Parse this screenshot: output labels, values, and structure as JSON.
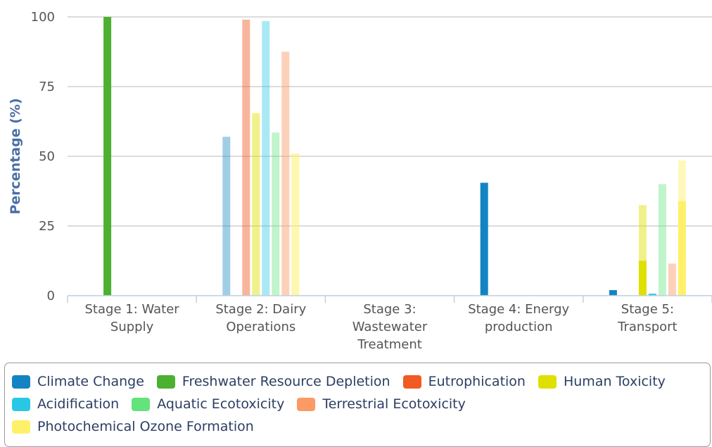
{
  "chart_data": {
    "type": "bar",
    "ylabel": "Percentage (%)",
    "ylim": [
      0,
      100
    ],
    "yticks": [
      0,
      25,
      50,
      75,
      100
    ],
    "grid": true,
    "legend_position": "bottom",
    "categories": [
      [
        "Stage 1: Water",
        "Supply"
      ],
      [
        "Stage 2: Dairy",
        "Operations"
      ],
      [
        "Stage 3:",
        "Wastewater",
        "Treatment"
      ],
      [
        "Stage 4: Energy",
        "production"
      ],
      [
        "Stage 5:",
        "Transport"
      ]
    ],
    "series": [
      {
        "name": "Climate Change",
        "color": "#1384c3",
        "stacks": [
          [
            0
          ],
          [
            {
              "value": 57,
              "alpha": 0.4
            }
          ],
          [
            0
          ],
          [
            40.5
          ],
          [
            2
          ]
        ]
      },
      {
        "name": "Freshwater Resource Depletion",
        "color": "#4cb031",
        "stacks": [
          [
            100
          ],
          [
            0
          ],
          [
            0
          ],
          [
            0
          ],
          [
            0
          ]
        ]
      },
      {
        "name": "Eutrophication",
        "color": "#f15a22",
        "stacks": [
          [
            0
          ],
          [
            {
              "value": 99,
              "alpha": 0.45
            }
          ],
          [
            0
          ],
          [
            0
          ],
          [
            0
          ]
        ]
      },
      {
        "name": "Human Toxicity",
        "color": "#dfe000",
        "stacks": [
          [
            0
          ],
          [
            {
              "value": 65.5,
              "alpha": 0.45
            }
          ],
          [
            0
          ],
          [
            0
          ],
          [
            12.5,
            {
              "value": 20,
              "alpha": 0.45
            }
          ]
        ]
      },
      {
        "name": "Acidification",
        "color": "#29c7e6",
        "stacks": [
          [
            0
          ],
          [
            {
              "value": 98.5,
              "alpha": 0.4
            }
          ],
          [
            0
          ],
          [
            0
          ],
          [
            0.7
          ]
        ]
      },
      {
        "name": "Aquatic Ecotoxicity",
        "color": "#62e37c",
        "stacks": [
          [
            0
          ],
          [
            {
              "value": 58.5,
              "alpha": 0.4
            }
          ],
          [
            0
          ],
          [
            0
          ],
          [
            {
              "value": 40,
              "alpha": 0.4
            }
          ]
        ]
      },
      {
        "name": "Terrestrial Ecotoxicity",
        "color": "#fb9a64",
        "stacks": [
          [
            0
          ],
          [
            {
              "value": 87.5,
              "alpha": 0.45
            }
          ],
          [
            0
          ],
          [
            0
          ],
          [
            {
              "value": 11.5,
              "alpha": 0.45
            }
          ]
        ]
      },
      {
        "name": "Photochemical Ozone Formation",
        "color": "#fff06a",
        "stacks": [
          [
            0
          ],
          [
            {
              "value": 51,
              "alpha": 0.55
            }
          ],
          [
            0
          ],
          [
            0
          ],
          [
            34,
            {
              "value": 14.5,
              "alpha": 0.45
            }
          ]
        ]
      }
    ]
  }
}
